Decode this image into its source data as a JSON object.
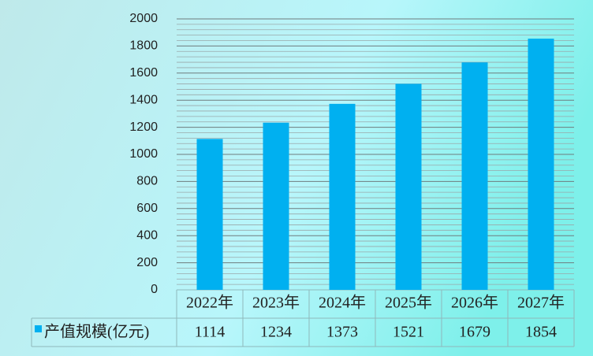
{
  "chart_data": {
    "type": "bar",
    "categories": [
      "2022年",
      "2023年",
      "2024年",
      "2025年",
      "2026年",
      "2027年"
    ],
    "series": [
      {
        "name": "产值规模(亿元)",
        "color": "#00b0f0",
        "values": [
          1114,
          1234,
          1373,
          1521,
          1679,
          1854
        ]
      }
    ],
    "ylim": [
      0,
      2000
    ],
    "yticks": [
      0,
      200,
      400,
      600,
      800,
      1000,
      1200,
      1400,
      1600,
      1800,
      2000
    ],
    "grid": true,
    "minor_grid": true,
    "legend": "bottom-left"
  }
}
